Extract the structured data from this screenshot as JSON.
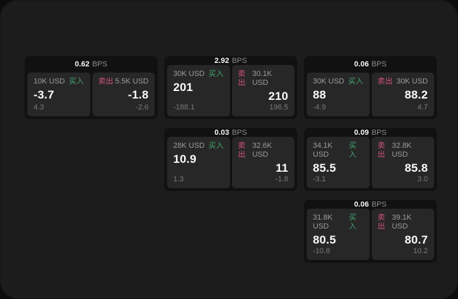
{
  "labels": {
    "bps_unit": "BPS",
    "buy": "买入",
    "sell": "卖出"
  },
  "colors": {
    "buy_accent": "#44a56c",
    "sell_accent": "#d05476",
    "panel_background": "#1c1c1d",
    "card_background": "#111112",
    "tile_background": "#272728"
  },
  "cards": [
    {
      "bps": "0.62",
      "buy": {
        "amount": "10K USD",
        "price": "-3.7",
        "sub": "4.3"
      },
      "sell": {
        "amount": "5.5K USD",
        "price": "-1.8",
        "sub": "-2.6"
      }
    },
    {
      "bps": "2.92",
      "buy": {
        "amount": "30K USD",
        "price": "201",
        "sub": "-188.1"
      },
      "sell": {
        "amount": "30.1K USD",
        "price": "210",
        "sub": "196.5"
      }
    },
    {
      "bps": "0.06",
      "buy": {
        "amount": "30K USD",
        "price": "88",
        "sub": "-4.9"
      },
      "sell": {
        "amount": "30K USD",
        "price": "88.2",
        "sub": "4.7"
      }
    },
    {
      "bps": "0.03",
      "buy": {
        "amount": "28K USD",
        "price": "10.9",
        "sub": "1.3"
      },
      "sell": {
        "amount": "32.6K USD",
        "price": "11",
        "sub": "-1.8"
      }
    },
    {
      "bps": "0.09",
      "buy": {
        "amount": "34.1K USD",
        "price": "85.5",
        "sub": "-3.1"
      },
      "sell": {
        "amount": "32.8K USD",
        "price": "85.8",
        "sub": "3.0"
      }
    },
    {
      "bps": "0.06",
      "buy": {
        "amount": "31.8K USD",
        "price": "80.5",
        "sub": "-10.8"
      },
      "sell": {
        "amount": "39.1K USD",
        "price": "80.7",
        "sub": "10.2"
      }
    }
  ]
}
